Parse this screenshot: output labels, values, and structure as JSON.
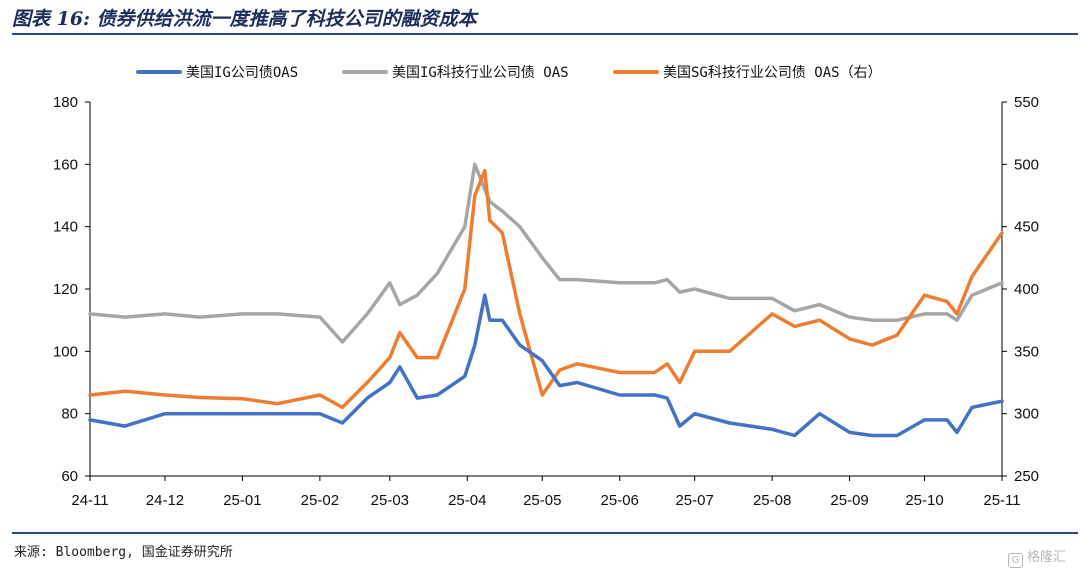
{
  "title": "图表 16: 债券供给洪流一度推高了科技公司的融资成本",
  "source": "来源: Bloomberg, 国金证券研究所",
  "watermark": "格隆汇",
  "chart_data": {
    "type": "line",
    "title": "图表 16: 债券供给洪流一度推高了科技公司的融资成本",
    "xlabel": "",
    "ylabel": "",
    "x_tick_labels": [
      "24-11",
      "24-12",
      "25-01",
      "25-02",
      "25-03",
      "25-04",
      "25-05",
      "25-06",
      "25-07",
      "25-08",
      "25-09",
      "25-10",
      "25-11"
    ],
    "y_left": {
      "lim": [
        60,
        180
      ],
      "ticks": [
        60,
        80,
        100,
        120,
        140,
        160,
        180
      ]
    },
    "y_right": {
      "lim": [
        250,
        550
      ],
      "ticks": [
        250,
        300,
        350,
        400,
        450,
        500,
        550
      ]
    },
    "grid": false,
    "legend_position": "top",
    "series": [
      {
        "name": "美国IG公司债OAS",
        "axis": "left",
        "color": "#4472c4",
        "x": [
          "2024-11-01",
          "2024-11-15",
          "2024-12-01",
          "2024-12-15",
          "2025-01-01",
          "2025-01-15",
          "2025-02-01",
          "2025-02-10",
          "2025-02-20",
          "2025-03-01",
          "2025-03-05",
          "2025-03-12",
          "2025-03-20",
          "2025-03-31",
          "2025-04-04",
          "2025-04-08",
          "2025-04-10",
          "2025-04-15",
          "2025-04-22",
          "2025-05-01",
          "2025-05-08",
          "2025-05-15",
          "2025-06-01",
          "2025-06-15",
          "2025-06-20",
          "2025-06-25",
          "2025-07-01",
          "2025-07-15",
          "2025-08-01",
          "2025-08-10",
          "2025-08-20",
          "2025-09-01",
          "2025-09-10",
          "2025-09-20",
          "2025-10-01",
          "2025-10-10",
          "2025-10-14",
          "2025-10-20",
          "2025-11-01"
        ],
        "values": [
          78,
          76,
          80,
          80,
          80,
          80,
          80,
          77,
          85,
          90,
          95,
          85,
          86,
          92,
          102,
          118,
          110,
          110,
          102,
          97,
          89,
          90,
          86,
          86,
          85,
          76,
          80,
          77,
          75,
          73,
          80,
          74,
          73,
          73,
          78,
          78,
          74,
          82,
          84
        ]
      },
      {
        "name": "美国IG科技行业公司债 OAS",
        "axis": "left",
        "color": "#a6a6a6",
        "x": [
          "2024-11-01",
          "2024-11-15",
          "2024-12-01",
          "2024-12-15",
          "2025-01-01",
          "2025-01-15",
          "2025-02-01",
          "2025-02-10",
          "2025-02-20",
          "2025-03-01",
          "2025-03-05",
          "2025-03-12",
          "2025-03-20",
          "2025-03-31",
          "2025-04-04",
          "2025-04-08",
          "2025-04-10",
          "2025-04-15",
          "2025-04-22",
          "2025-05-01",
          "2025-05-08",
          "2025-05-15",
          "2025-06-01",
          "2025-06-15",
          "2025-06-20",
          "2025-06-25",
          "2025-07-01",
          "2025-07-15",
          "2025-08-01",
          "2025-08-10",
          "2025-08-20",
          "2025-09-01",
          "2025-09-10",
          "2025-09-20",
          "2025-10-01",
          "2025-10-10",
          "2025-10-14",
          "2025-10-20",
          "2025-11-01"
        ],
        "values": [
          112,
          111,
          112,
          111,
          112,
          112,
          111,
          103,
          112,
          122,
          115,
          118,
          125,
          140,
          160,
          152,
          148,
          145,
          140,
          130,
          123,
          123,
          122,
          122,
          123,
          119,
          120,
          117,
          117,
          113,
          115,
          111,
          110,
          110,
          112,
          112,
          110,
          118,
          122
        ]
      },
      {
        "name": "美国SG科技行业公司债 OAS（右）",
        "axis": "right",
        "color": "#ed7d31",
        "x": [
          "2024-11-01",
          "2024-11-15",
          "2024-12-01",
          "2024-12-15",
          "2025-01-01",
          "2025-01-15",
          "2025-02-01",
          "2025-02-10",
          "2025-02-20",
          "2025-03-01",
          "2025-03-05",
          "2025-03-12",
          "2025-03-20",
          "2025-03-31",
          "2025-04-04",
          "2025-04-08",
          "2025-04-10",
          "2025-04-15",
          "2025-04-22",
          "2025-05-01",
          "2025-05-08",
          "2025-05-15",
          "2025-06-01",
          "2025-06-15",
          "2025-06-20",
          "2025-06-25",
          "2025-07-01",
          "2025-07-15",
          "2025-08-01",
          "2025-08-10",
          "2025-08-20",
          "2025-09-01",
          "2025-09-10",
          "2025-09-20",
          "2025-10-01",
          "2025-10-10",
          "2025-10-14",
          "2025-10-20",
          "2025-11-01"
        ],
        "values": [
          315,
          318,
          315,
          313,
          312,
          308,
          315,
          305,
          325,
          345,
          365,
          345,
          345,
          400,
          475,
          495,
          455,
          445,
          380,
          315,
          335,
          340,
          333,
          333,
          340,
          325,
          350,
          350,
          380,
          370,
          375,
          360,
          355,
          363,
          395,
          390,
          380,
          410,
          445
        ]
      }
    ]
  }
}
